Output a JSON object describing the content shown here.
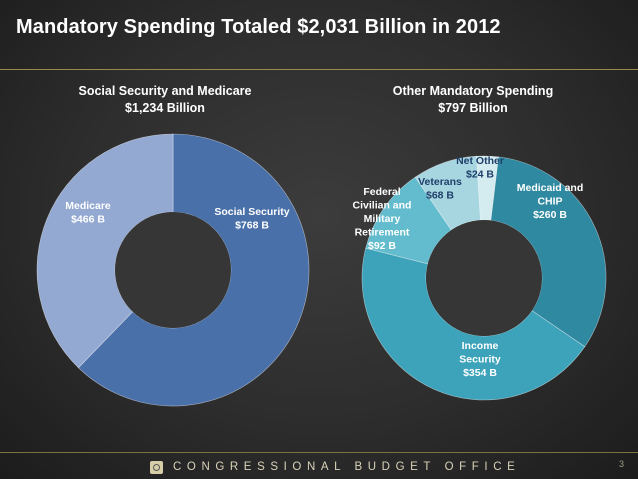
{
  "title": "Mandatory Spending Totaled $2,031 Billion in 2012",
  "footer": {
    "agency": "CONGRESSIONAL BUDGET OFFICE",
    "page_number": "3"
  },
  "chart_data": [
    {
      "type": "pie",
      "variant": "donut",
      "title": "Social Security and Medicare",
      "subtitle": "$1,234 Billion",
      "total": 1234,
      "unit": "billion USD",
      "slices": [
        {
          "name": "Social Security",
          "label": [
            "Social Security",
            "$768 B"
          ],
          "value": 768,
          "color": "#4a70a9",
          "label_color": "#ffffff"
        },
        {
          "name": "Medicare",
          "label": [
            "Medicare",
            "$466 B"
          ],
          "value": 466,
          "color": "#93a9d1",
          "label_color": "#ffffff"
        }
      ]
    },
    {
      "type": "pie",
      "variant": "donut",
      "title": "Other Mandatory Spending",
      "subtitle": "$797 Billion",
      "total": 797,
      "unit": "billion USD",
      "slices": [
        {
          "name": "Net Other",
          "label": [
            "Net Other",
            "$24 B"
          ],
          "value": 24,
          "color": "#d4ecf0",
          "label_color": "#1f3f6b"
        },
        {
          "name": "Medicaid and CHIP",
          "label": [
            "Medicaid and",
            "CHIP",
            "$260 B"
          ],
          "value": 260,
          "color": "#2f89a1",
          "label_color": "#ffffff"
        },
        {
          "name": "Income Security",
          "label": [
            "Income",
            "Security",
            "$354 B"
          ],
          "value": 354,
          "color": "#3da3bb",
          "label_color": "#ffffff"
        },
        {
          "name": "Federal Civilian and Military Retirement",
          "label": [
            "Federal",
            "Civilian and",
            "Military",
            "Retirement",
            "$92 B"
          ],
          "value": 92,
          "color": "#63bccd",
          "label_color": "#ffffff"
        },
        {
          "name": "Veterans",
          "label": [
            "Veterans",
            "$68 B"
          ],
          "value": 68,
          "color": "#a7d6e1",
          "label_color": "#1f3f6b"
        }
      ]
    }
  ]
}
